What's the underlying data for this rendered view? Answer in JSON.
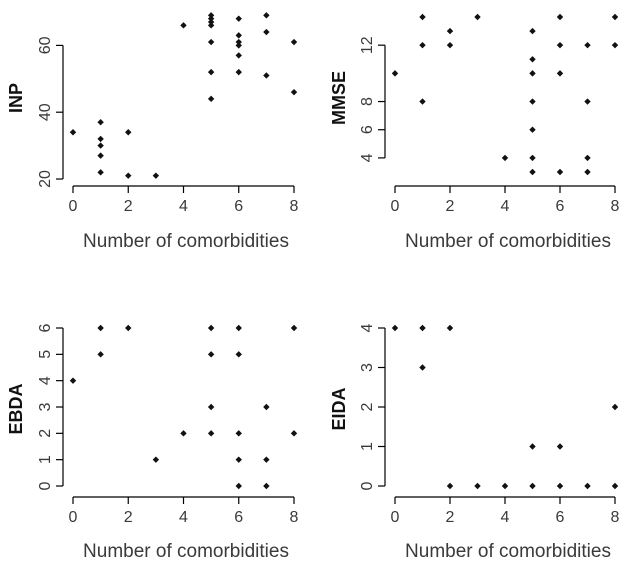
{
  "chart_data": [
    {
      "type": "scatter",
      "xlabel": "Number of comorbidities",
      "ylabel": "INP",
      "xlim": [
        0,
        8
      ],
      "ylim": [
        20,
        70
      ],
      "xticks": [
        0,
        2,
        4,
        6,
        8
      ],
      "yticks": [
        20,
        40,
        60
      ],
      "points": [
        [
          0,
          34
        ],
        [
          1,
          37
        ],
        [
          1,
          32
        ],
        [
          1,
          30
        ],
        [
          1,
          27
        ],
        [
          1,
          22
        ],
        [
          2,
          34
        ],
        [
          2,
          21
        ],
        [
          3,
          21
        ],
        [
          4,
          66
        ],
        [
          5,
          69
        ],
        [
          5,
          68
        ],
        [
          5,
          67
        ],
        [
          5,
          66
        ],
        [
          5,
          61
        ],
        [
          5,
          52
        ],
        [
          5,
          44
        ],
        [
          6,
          68
        ],
        [
          6,
          63
        ],
        [
          6,
          61
        ],
        [
          6,
          60
        ],
        [
          6,
          57
        ],
        [
          6,
          52
        ],
        [
          7,
          69
        ],
        [
          7,
          64
        ],
        [
          7,
          51
        ],
        [
          8,
          61
        ],
        [
          8,
          46
        ]
      ]
    },
    {
      "type": "scatter",
      "xlabel": "Number of comorbidities",
      "ylabel": "MMSE",
      "xlim": [
        0,
        8
      ],
      "ylim": [
        3,
        14
      ],
      "xticks": [
        0,
        2,
        4,
        6,
        8
      ],
      "yticks": [
        4,
        6,
        8,
        12
      ],
      "points": [
        [
          0,
          10
        ],
        [
          1,
          14
        ],
        [
          1,
          12
        ],
        [
          1,
          8
        ],
        [
          2,
          13
        ],
        [
          2,
          12
        ],
        [
          3,
          14
        ],
        [
          4,
          4
        ],
        [
          5,
          13
        ],
        [
          5,
          11
        ],
        [
          5,
          10
        ],
        [
          5,
          8
        ],
        [
          5,
          6
        ],
        [
          5,
          4
        ],
        [
          5,
          3
        ],
        [
          6,
          14
        ],
        [
          6,
          12
        ],
        [
          6,
          10
        ],
        [
          6,
          3
        ],
        [
          7,
          12
        ],
        [
          7,
          8
        ],
        [
          7,
          4
        ],
        [
          7,
          3
        ],
        [
          8,
          14
        ],
        [
          8,
          12
        ]
      ]
    },
    {
      "type": "scatter",
      "xlabel": "Number of comorbidities",
      "ylabel": "EBDA",
      "xlim": [
        0,
        8
      ],
      "ylim": [
        0,
        6
      ],
      "xticks": [
        0,
        2,
        4,
        6,
        8
      ],
      "yticks": [
        0,
        1,
        2,
        3,
        4,
        5,
        6
      ],
      "points": [
        [
          0,
          4
        ],
        [
          1,
          6
        ],
        [
          1,
          5
        ],
        [
          2,
          6
        ],
        [
          3,
          1
        ],
        [
          4,
          2
        ],
        [
          5,
          6
        ],
        [
          5,
          5
        ],
        [
          5,
          3
        ],
        [
          5,
          2
        ],
        [
          6,
          6
        ],
        [
          6,
          5
        ],
        [
          6,
          2
        ],
        [
          6,
          1
        ],
        [
          6,
          0
        ],
        [
          7,
          3
        ],
        [
          7,
          1
        ],
        [
          7,
          0
        ],
        [
          8,
          6
        ],
        [
          8,
          2
        ]
      ]
    },
    {
      "type": "scatter",
      "xlabel": "Number of comorbidities",
      "ylabel": "EIDA",
      "xlim": [
        0,
        8
      ],
      "ylim": [
        0,
        4
      ],
      "xticks": [
        0,
        2,
        4,
        6,
        8
      ],
      "yticks": [
        0,
        1,
        2,
        3,
        4
      ],
      "points": [
        [
          0,
          4
        ],
        [
          1,
          4
        ],
        [
          1,
          3
        ],
        [
          2,
          4
        ],
        [
          2,
          0
        ],
        [
          3,
          0
        ],
        [
          4,
          0
        ],
        [
          5,
          1
        ],
        [
          5,
          0
        ],
        [
          6,
          1
        ],
        [
          6,
          0
        ],
        [
          7,
          0
        ],
        [
          8,
          2
        ],
        [
          8,
          0
        ]
      ]
    }
  ]
}
